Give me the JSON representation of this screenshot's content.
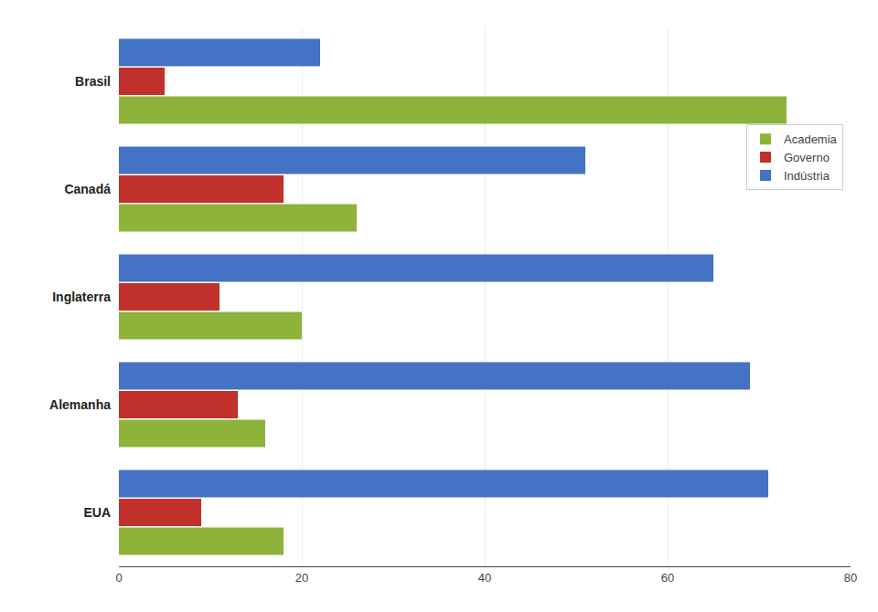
{
  "chart_data": {
    "type": "bar",
    "orientation": "horizontal",
    "categories": [
      "EUA",
      "Alemanha",
      "Inglaterra",
      "Canadá",
      "Brasil"
    ],
    "series": [
      {
        "name": "Academia",
        "color": "#8DB33A",
        "values": [
          18,
          16,
          20,
          26,
          73
        ]
      },
      {
        "name": "Governo",
        "color": "#C0312B",
        "values": [
          9,
          13,
          11,
          18,
          5
        ]
      },
      {
        "name": "Indústria",
        "color": "#4472C4",
        "values": [
          71,
          69,
          65,
          51,
          22
        ]
      }
    ],
    "xlim": [
      0,
      80
    ],
    "xticks": [
      0,
      20,
      40,
      60,
      80
    ],
    "grid": true,
    "legend": "upper right"
  }
}
